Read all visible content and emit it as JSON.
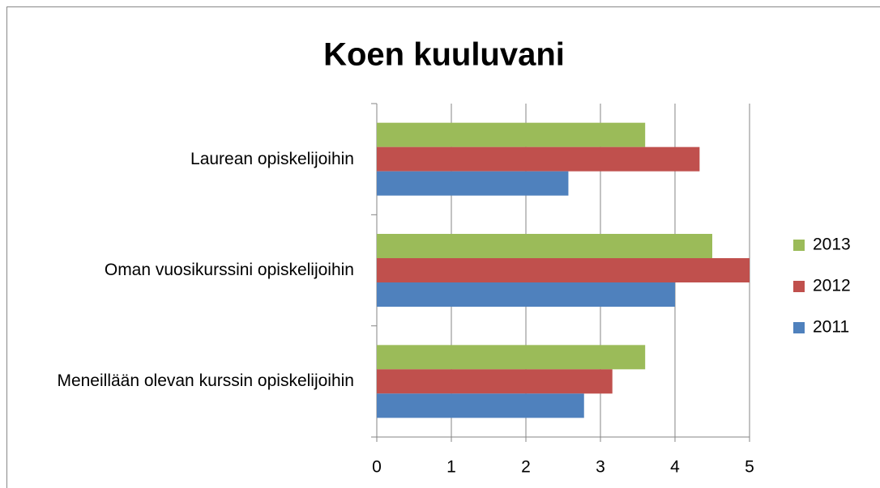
{
  "chart_data": {
    "type": "bar",
    "orientation": "horizontal",
    "title": "Koen kuuluvani",
    "categories": [
      "Laurean opiskelijoihin",
      "Oman vuosikurssini opiskelijoihin",
      "Meneillään olevan kurssin opiskelijoihin"
    ],
    "series": [
      {
        "name": "2013",
        "color": "#9bbb59",
        "values": [
          3.6,
          4.5,
          3.6
        ]
      },
      {
        "name": "2012",
        "color": "#c0504d",
        "values": [
          4.33,
          5,
          3.16
        ]
      },
      {
        "name": "2011",
        "color": "#4f81bd",
        "values": [
          2.57,
          4,
          2.78
        ]
      }
    ],
    "xlim": [
      0,
      5
    ],
    "xticks": [
      0,
      1,
      2,
      3,
      4,
      5
    ],
    "grid": true,
    "legend": "right"
  }
}
